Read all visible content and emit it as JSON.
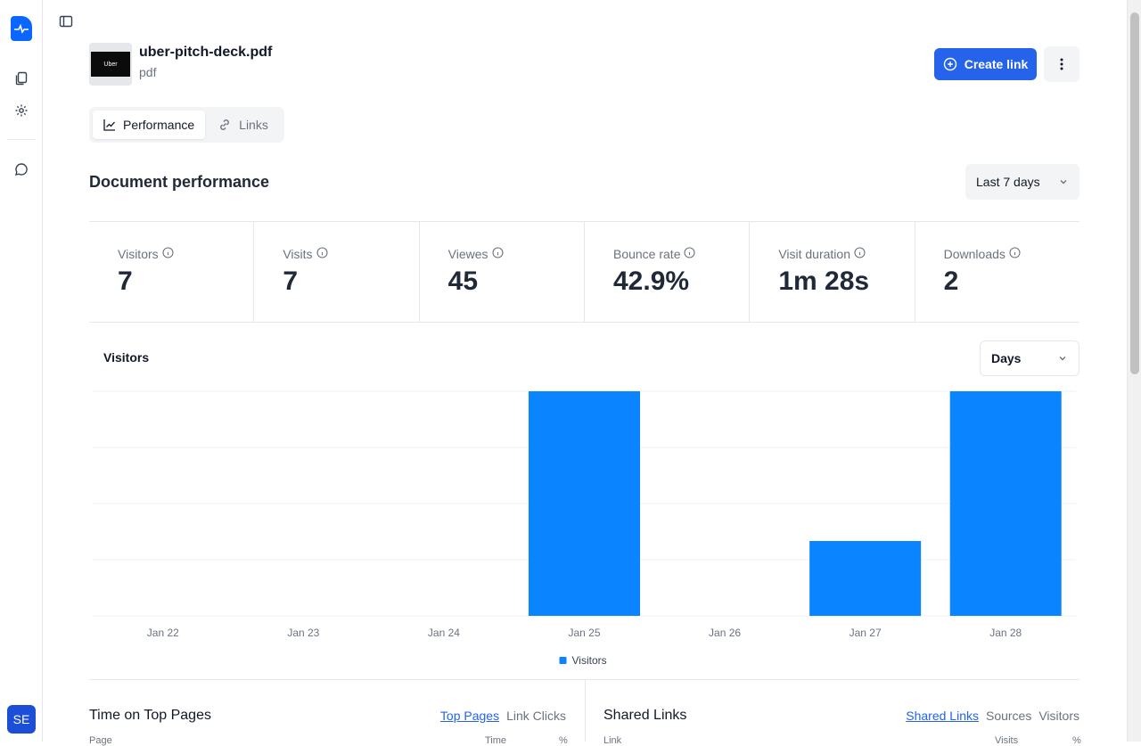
{
  "sidebar": {
    "avatar_initials": "SE",
    "icons": [
      "logo-icon",
      "documents-icon",
      "settings-icon",
      "chat-icon"
    ]
  },
  "document": {
    "thumbnail_text": "Uber",
    "title": "uber-pitch-deck.pdf",
    "type": "pdf"
  },
  "actions": {
    "create_link": "Create link"
  },
  "tabs": [
    {
      "label": "Performance",
      "active": true
    },
    {
      "label": "Links",
      "active": false
    }
  ],
  "performance": {
    "title": "Document performance",
    "range": "Last 7 days"
  },
  "stats": [
    {
      "label": "Visitors",
      "value": "7"
    },
    {
      "label": "Visits",
      "value": "7"
    },
    {
      "label": "Viewes",
      "value": "45"
    },
    {
      "label": "Bounce rate",
      "value": "42.9%"
    },
    {
      "label": "Visit duration",
      "value": "1m 28s"
    },
    {
      "label": "Downloads",
      "value": "2"
    }
  ],
  "chart_section": {
    "title": "Visitors",
    "granularity": "Days"
  },
  "chart_data": {
    "type": "bar",
    "categories": [
      "Jan 22",
      "Jan 23",
      "Jan 24",
      "Jan 25",
      "Jan 26",
      "Jan 27",
      "Jan 28"
    ],
    "series": [
      {
        "name": "Visitors",
        "values": [
          0,
          0,
          0,
          3,
          0,
          1,
          3
        ],
        "color": "#0a84ff"
      }
    ],
    "ylim": [
      0,
      3
    ],
    "grid": true,
    "legend": "bottom-center"
  },
  "bottom": {
    "left": {
      "title": "Time on Top Pages",
      "links": [
        {
          "label": "Top Pages",
          "selected": true
        },
        {
          "label": "Link Clicks",
          "selected": false
        }
      ],
      "columns": [
        "Page",
        "Time",
        "%"
      ]
    },
    "right": {
      "title": "Shared Links",
      "links": [
        {
          "label": "Shared Links",
          "selected": true
        },
        {
          "label": "Sources",
          "selected": false
        },
        {
          "label": "Visitors",
          "selected": false
        }
      ],
      "columns": [
        "Link",
        "Visits",
        "%"
      ]
    }
  },
  "colors": {
    "accent": "#2563eb",
    "bar": "#0a84ff"
  }
}
